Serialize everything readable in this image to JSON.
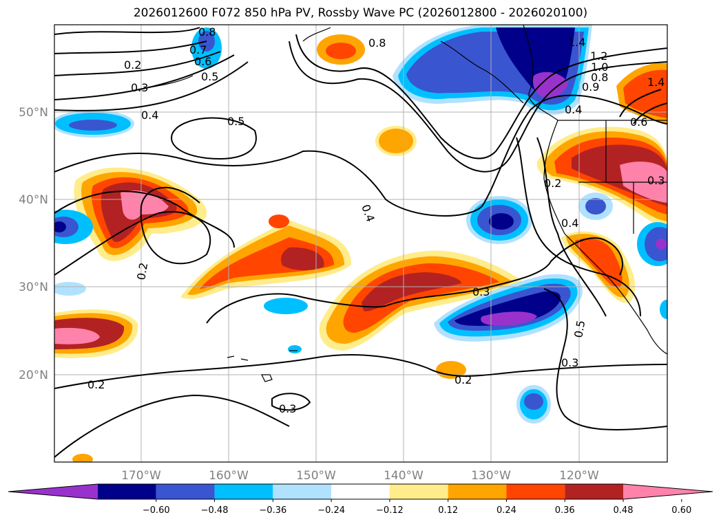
{
  "title": "2026012600 F072 850 hPa PV, Rossby Wave PC (2026012800 - 2026020100)",
  "axes": {
    "lat_labels": [
      "50°N",
      "40°N",
      "30°N",
      "20°N"
    ],
    "lon_labels": [
      "170°W",
      "160°W",
      "150°W",
      "140°W",
      "130°W",
      "120°W"
    ]
  },
  "colorbar": {
    "ticks": [
      "−0.60",
      "−0.48",
      "−0.36",
      "−0.24",
      "−0.12",
      "0.12",
      "0.24",
      "0.36",
      "0.48",
      "0.60"
    ],
    "colors": [
      "#9932CC",
      "#00008B",
      "#3A55D0",
      "#00BFFF",
      "#B0E2FF",
      "#FFFFFF",
      "#FFEC8B",
      "#FFA500",
      "#FF4500",
      "#B22222",
      "#FF82AB"
    ]
  },
  "contour_labels": [
    "0.8",
    "0.7",
    "0.6",
    "0.5",
    "0.2",
    "0.3",
    "0.4",
    "0.5",
    "0.8",
    "1.4",
    "1.2",
    "1.0",
    "0.8",
    "0.9",
    "1.4",
    "0.6",
    "0.4",
    "0.4",
    "0.2",
    "0.4",
    "0.3",
    "0.5",
    "0.3",
    "0.2",
    "0.2",
    "0.3",
    "0.2",
    "0.3"
  ]
}
